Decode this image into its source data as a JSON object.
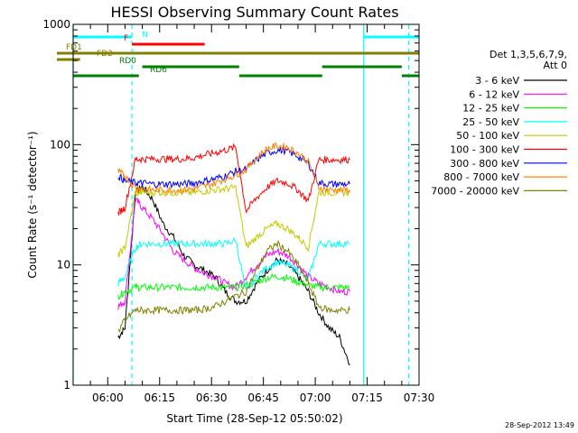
{
  "chart_data": {
    "type": "line",
    "title": "HESSI Observing Summary Count Rates",
    "xlabel": "Start Time (28-Sep-12 05:50:02)",
    "ylabel": "Count Rate (s⁻¹ detector⁻¹)",
    "y_scale": "log",
    "ylim": [
      1,
      1000
    ],
    "y_ticks": [
      {
        "value": 1,
        "label": "1"
      },
      {
        "value": 10,
        "label": "10"
      },
      {
        "value": 100,
        "label": "100"
      },
      {
        "value": 1000,
        "label": "1000"
      }
    ],
    "xlim": [
      "05:50",
      "07:30"
    ],
    "x_ticks": [
      "06:00",
      "06:15",
      "06:30",
      "06:45",
      "07:00",
      "07:15",
      "07:30"
    ],
    "grid": false,
    "legend_title": [
      "Det 1,3,5,6,7,9,",
      "Att 0"
    ],
    "legend_position": "right",
    "footer": "28-Sep-2012 13:49",
    "vertical_markers": [
      {
        "time": "05:50",
        "style": "solid",
        "color": "#00ffff"
      },
      {
        "time": "06:07",
        "style": "dashed",
        "color": "#00ffff"
      },
      {
        "time": "07:14",
        "style": "solid",
        "color": "#00ffff"
      },
      {
        "time": "07:27",
        "style": "dashed",
        "color": "#00ffff"
      }
    ],
    "status_bars": [
      {
        "label": "N",
        "color": "#00ffff",
        "segments": [
          [
            "05:50",
            "06:07"
          ],
          [
            "07:14",
            "07:30"
          ]
        ]
      },
      {
        "label": "F",
        "color": "#ff0000",
        "segments": [
          [
            "06:07",
            "06:28"
          ]
        ]
      },
      {
        "label": "FD1",
        "color": "#808000",
        "segments": [
          [
            "05:50",
            "07:30"
          ]
        ]
      },
      {
        "label": "FD2",
        "color": "#808000",
        "segments": [
          [
            "05:50",
            "05:52"
          ]
        ]
      },
      {
        "label": "RD0",
        "color": "#008000",
        "segments": [
          [
            "06:10",
            "06:38"
          ],
          [
            "07:02",
            "07:25"
          ]
        ]
      },
      {
        "label": "RD6",
        "color": "#008000",
        "segments": [
          [
            "05:50",
            "06:09"
          ],
          [
            "06:38",
            "07:02"
          ],
          [
            "07:25",
            "07:30"
          ]
        ]
      }
    ],
    "series": [
      {
        "name": "3 - 6 keV",
        "color": "#000000",
        "x": [
          "06:03",
          "06:05",
          "06:08",
          "06:10",
          "06:13",
          "06:16",
          "06:19",
          "06:22",
          "06:25",
          "06:28",
          "06:31",
          "06:34",
          "06:37",
          "06:40",
          "06:43",
          "06:46",
          "06:49",
          "06:52",
          "06:55",
          "06:58",
          "07:01",
          "07:04",
          "07:07",
          "07:10"
        ],
        "values": [
          2.5,
          3.0,
          40,
          45,
          35,
          22,
          17,
          12,
          10,
          9,
          8,
          6,
          5,
          5,
          7,
          9,
          11,
          10,
          8,
          6,
          4,
          3,
          2.5,
          1.5
        ]
      },
      {
        "name": "6 - 12 keV",
        "color": "#ff00ff",
        "x": [
          "06:03",
          "06:05",
          "06:08",
          "06:10",
          "06:13",
          "06:16",
          "06:19",
          "06:22",
          "06:25",
          "06:28",
          "06:31",
          "06:34",
          "06:37",
          "06:40",
          "06:43",
          "06:46",
          "06:49",
          "06:52",
          "06:55",
          "06:58",
          "07:01",
          "07:04",
          "07:07",
          "07:10"
        ],
        "values": [
          4.5,
          5,
          35,
          30,
          24,
          18,
          13,
          11,
          9.5,
          8.5,
          8,
          7,
          6.5,
          8,
          10,
          12,
          13,
          12,
          10,
          8,
          7,
          6.5,
          6,
          6
        ]
      },
      {
        "name": "12 - 25 keV",
        "color": "#00ff00",
        "x": [
          "06:03",
          "06:05",
          "06:08",
          "06:10",
          "06:13",
          "06:16",
          "06:19",
          "06:22",
          "06:25",
          "06:28",
          "06:31",
          "06:34",
          "06:37",
          "06:40",
          "06:43",
          "06:46",
          "06:49",
          "06:52",
          "06:55",
          "06:58",
          "07:01",
          "07:04",
          "07:07",
          "07:10"
        ],
        "values": [
          5.5,
          6,
          6.5,
          6.5,
          6.5,
          6.5,
          6.5,
          6.5,
          6.5,
          6.5,
          6.5,
          6.5,
          6.5,
          6.8,
          7.2,
          7.8,
          8.0,
          7.8,
          7.2,
          6.8,
          6.5,
          6.5,
          6.5,
          6.5
        ]
      },
      {
        "name": "25 - 50 keV",
        "color": "#00ffff",
        "x": [
          "06:03",
          "06:05",
          "06:08",
          "06:10",
          "06:13",
          "06:16",
          "06:19",
          "06:22",
          "06:25",
          "06:28",
          "06:31",
          "06:34",
          "06:37",
          "06:40",
          "06:43",
          "06:46",
          "06:49",
          "06:52",
          "06:55",
          "06:58",
          "07:01",
          "07:04",
          "07:07",
          "07:10"
        ],
        "values": [
          7,
          8,
          14,
          15,
          15,
          15,
          15,
          15,
          15,
          15,
          15,
          15,
          16,
          6,
          8,
          9.5,
          10.5,
          10,
          9,
          7.5,
          15,
          15,
          15,
          15
        ]
      },
      {
        "name": "50 - 100 keV",
        "color": "#c8c800",
        "x": [
          "06:03",
          "06:05",
          "06:08",
          "06:10",
          "06:13",
          "06:16",
          "06:19",
          "06:22",
          "06:25",
          "06:28",
          "06:31",
          "06:34",
          "06:37",
          "06:40",
          "06:43",
          "06:46",
          "06:49",
          "06:52",
          "06:55",
          "06:58",
          "07:01",
          "07:04",
          "07:07",
          "07:10"
        ],
        "values": [
          12,
          14,
          40,
          40,
          40,
          40,
          40,
          40,
          40,
          41,
          42,
          43,
          44,
          14,
          17,
          20,
          22,
          20,
          17,
          14,
          40,
          40,
          40,
          40
        ]
      },
      {
        "name": "100 - 300 keV",
        "color": "#ff0000",
        "x": [
          "06:03",
          "06:05",
          "06:08",
          "06:10",
          "06:13",
          "06:16",
          "06:19",
          "06:22",
          "06:25",
          "06:28",
          "06:31",
          "06:34",
          "06:37",
          "06:40",
          "06:43",
          "06:46",
          "06:49",
          "06:52",
          "06:55",
          "06:58",
          "07:01",
          "07:04",
          "07:07",
          "07:10"
        ],
        "values": [
          27,
          30,
          75,
          76,
          76,
          76,
          76,
          76,
          78,
          82,
          86,
          90,
          95,
          28,
          36,
          44,
          50,
          48,
          42,
          34,
          75,
          75,
          75,
          75
        ]
      },
      {
        "name": "300 - 800 keV",
        "color": "#0000ff",
        "x": [
          "06:03",
          "06:05",
          "06:08",
          "06:10",
          "06:13",
          "06:16",
          "06:19",
          "06:22",
          "06:25",
          "06:28",
          "06:31",
          "06:34",
          "06:37",
          "06:40",
          "06:43",
          "06:46",
          "06:49",
          "06:52",
          "06:55",
          "06:58",
          "07:01",
          "07:04",
          "07:07",
          "07:10"
        ],
        "values": [
          55,
          50,
          48,
          48,
          47,
          47,
          47,
          47,
          48,
          50,
          52,
          55,
          60,
          62,
          75,
          85,
          90,
          88,
          80,
          70,
          48,
          47,
          47,
          47
        ]
      },
      {
        "name": "800 - 7000 keV",
        "color": "#ff8000",
        "x": [
          "06:03",
          "06:05",
          "06:08",
          "06:10",
          "06:13",
          "06:16",
          "06:19",
          "06:22",
          "06:25",
          "06:28",
          "06:31",
          "06:34",
          "06:37",
          "06:40",
          "06:43",
          "06:46",
          "06:49",
          "06:52",
          "06:55",
          "06:58",
          "07:01",
          "07:04",
          "07:07",
          "07:10"
        ],
        "values": [
          60,
          55,
          44,
          43,
          42,
          42,
          42,
          42,
          43,
          45,
          48,
          52,
          56,
          62,
          78,
          92,
          98,
          95,
          85,
          72,
          44,
          42,
          42,
          42
        ]
      },
      {
        "name": "7000 - 20000 keV",
        "color": "#808000",
        "x": [
          "06:03",
          "06:05",
          "06:08",
          "06:10",
          "06:13",
          "06:16",
          "06:19",
          "06:22",
          "06:25",
          "06:28",
          "06:31",
          "06:34",
          "06:37",
          "06:40",
          "06:43",
          "06:46",
          "06:49",
          "06:52",
          "06:55",
          "06:58",
          "07:01",
          "07:04",
          "07:07",
          "07:10"
        ],
        "values": [
          2.8,
          3.5,
          4.2,
          4.2,
          4.2,
          4.2,
          4.2,
          4.2,
          4.2,
          4.3,
          4.5,
          5,
          5.5,
          6,
          9,
          13,
          15,
          13,
          10,
          7,
          4.5,
          4.2,
          4.2,
          4.2
        ]
      }
    ]
  }
}
